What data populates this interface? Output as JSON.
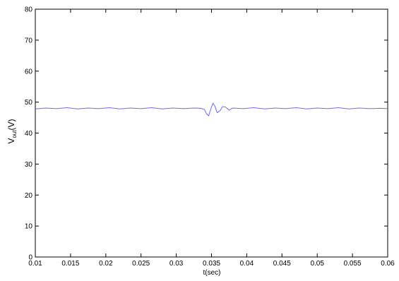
{
  "chart_data": {
    "type": "line",
    "title": "",
    "xlabel": "t(sec)",
    "ylabel_main": "V",
    "ylabel_sub": "out",
    "ylabel_tail": "(V)",
    "xlim": [
      0.01,
      0.06
    ],
    "ylim": [
      0,
      80
    ],
    "xticks": [
      0.01,
      0.015,
      0.02,
      0.025,
      0.03,
      0.035,
      0.04,
      0.045,
      0.05,
      0.055,
      0.06
    ],
    "xtick_labels": [
      "0.01",
      "0.015",
      "0.02",
      "0.025",
      "0.03",
      "0.035",
      "0.04",
      "0.045",
      "0.05",
      "0.055",
      "0.06"
    ],
    "yticks": [
      0,
      10,
      20,
      30,
      40,
      50,
      60,
      70,
      80
    ],
    "ytick_labels": [
      "0",
      "10",
      "20",
      "30",
      "40",
      "50",
      "60",
      "70",
      "80"
    ],
    "grid": false,
    "series": [
      {
        "color": "#6a6af0",
        "x": [
          0.01,
          0.0115,
          0.013,
          0.0145,
          0.016,
          0.0175,
          0.019,
          0.0205,
          0.022,
          0.0235,
          0.025,
          0.0265,
          0.028,
          0.0295,
          0.031,
          0.0325,
          0.0335,
          0.034,
          0.0343,
          0.0346,
          0.0349,
          0.0352,
          0.0355,
          0.0358,
          0.0362,
          0.0366,
          0.037,
          0.0375,
          0.038,
          0.0395,
          0.041,
          0.0425,
          0.044,
          0.0455,
          0.047,
          0.0485,
          0.05,
          0.0515,
          0.053,
          0.0545,
          0.056,
          0.0575,
          0.059,
          0.06
        ],
        "values": [
          47.8,
          48.1,
          47.9,
          48.2,
          47.8,
          48.1,
          47.9,
          48.2,
          47.8,
          48.1,
          47.9,
          48.2,
          47.8,
          48.1,
          47.9,
          48.1,
          48.0,
          47.6,
          46.2,
          45.6,
          47.8,
          49.6,
          48.6,
          46.6,
          47.2,
          48.6,
          48.4,
          47.4,
          48.1,
          47.9,
          48.2,
          47.8,
          48.1,
          47.9,
          48.2,
          47.8,
          48.1,
          47.9,
          48.2,
          47.8,
          48.1,
          47.9,
          48.0,
          47.9
        ]
      }
    ]
  }
}
